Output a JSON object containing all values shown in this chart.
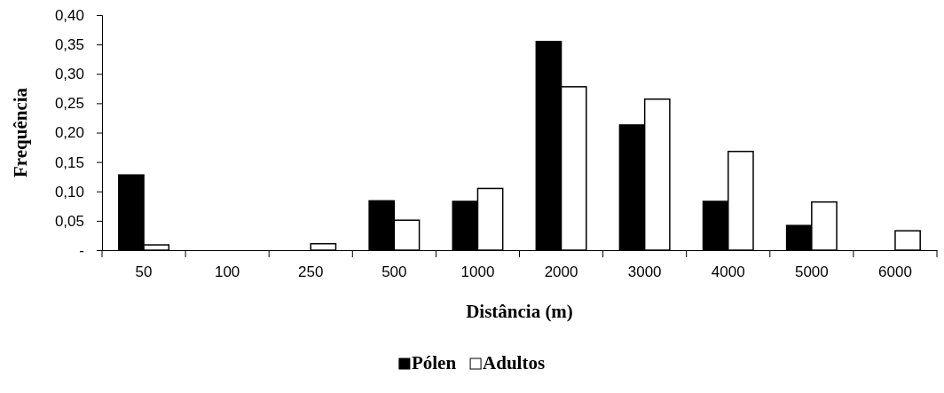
{
  "chart_data": {
    "type": "bar",
    "xlabel": "Distância (m)",
    "ylabel": "Frequência",
    "categories": [
      "50",
      "100",
      "250",
      "500",
      "1000",
      "2000",
      "3000",
      "4000",
      "5000",
      "6000"
    ],
    "series": [
      {
        "name": "Pólen",
        "color": "#000000",
        "values": [
          0.128,
          0,
          0,
          0.084,
          0.083,
          0.355,
          0.213,
          0.083,
          0.042,
          0
        ]
      },
      {
        "name": "Adultos",
        "color": "#ffffff",
        "values": [
          0.009,
          0,
          0.011,
          0.051,
          0.105,
          0.278,
          0.257,
          0.168,
          0.082,
          0.033
        ]
      }
    ],
    "ylim": [
      0,
      0.4
    ],
    "yticks": [
      {
        "value": 0,
        "label": "-"
      },
      {
        "value": 0.05,
        "label": "0,05"
      },
      {
        "value": 0.1,
        "label": "0,10"
      },
      {
        "value": 0.15,
        "label": "0,15"
      },
      {
        "value": 0.2,
        "label": "0,20"
      },
      {
        "value": 0.25,
        "label": "0,25"
      },
      {
        "value": 0.3,
        "label": "0,30"
      },
      {
        "value": 0.35,
        "label": "0,35"
      },
      {
        "value": 0.4,
        "label": "0,40"
      }
    ],
    "grid": false,
    "legend": "bottom"
  }
}
